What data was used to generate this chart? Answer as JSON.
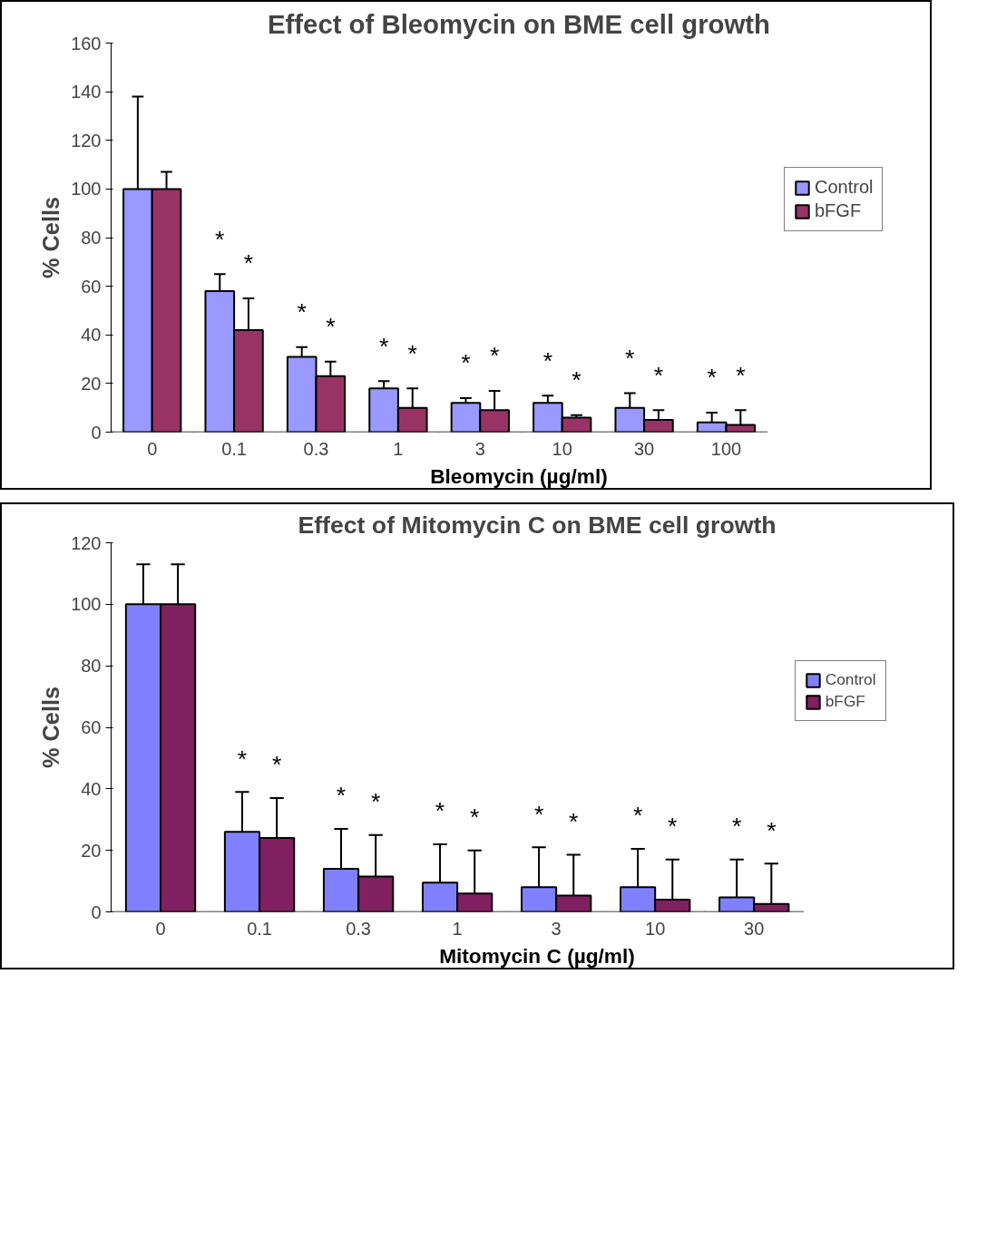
{
  "chart_data": [
    {
      "type": "bar",
      "title": "Effect of Bleomycin on BME cell growth",
      "xlabel": "Bleomycin (µg/ml)",
      "ylabel": "% Cells",
      "categories": [
        "0",
        "0.1",
        "0.3",
        "1",
        "3",
        "10",
        "30",
        "100"
      ],
      "series": [
        {
          "name": "Control",
          "color": "#9999ff",
          "values": [
            100,
            58,
            31,
            18,
            12,
            12,
            10,
            4
          ],
          "errors": [
            [
              100,
              138
            ],
            [
              58,
              65
            ],
            [
              31,
              35
            ],
            [
              18,
              21
            ],
            [
              12,
              14
            ],
            [
              12,
              15
            ],
            [
              10,
              16
            ],
            [
              4,
              8
            ]
          ]
        },
        {
          "name": "bFGF",
          "color": "#993366",
          "values": [
            100,
            42,
            23,
            10,
            9,
            6,
            5,
            3
          ],
          "errors": [
            [
              100,
              107
            ],
            [
              42,
              55
            ],
            [
              23,
              29
            ],
            [
              10,
              18
            ],
            [
              9,
              17
            ],
            [
              6,
              7
            ],
            [
              5,
              9
            ],
            [
              3,
              9
            ]
          ]
        }
      ],
      "ylim": [
        0,
        160
      ],
      "yticks": [
        0,
        20,
        40,
        60,
        80,
        100,
        120,
        140,
        160
      ],
      "grid": false,
      "legend": "right",
      "annotations": [
        "*",
        "*",
        "*",
        "*",
        "*",
        "*",
        "*",
        "*",
        "*",
        "*",
        "*",
        "*",
        "*",
        "*"
      ]
    },
    {
      "type": "bar",
      "title": "Effect of Mitomycin C on BME cell growth",
      "xlabel": "Mitomycin C (µg/ml)",
      "ylabel": "% Cells",
      "categories": [
        "0",
        "0.1",
        "0.3",
        "1",
        "3",
        "10",
        "30"
      ],
      "series": [
        {
          "name": "Control",
          "color": "#8080ff",
          "values": [
            100,
            26,
            14,
            9.5,
            8,
            8,
            4.7
          ],
          "errors": [
            [
              100,
              113
            ],
            [
              26,
              39
            ],
            [
              14,
              27
            ],
            [
              9.5,
              22
            ],
            [
              8,
              21
            ],
            [
              8,
              20.5
            ],
            [
              4.7,
              17
            ]
          ]
        },
        {
          "name": "bFGF",
          "color": "#802060",
          "values": [
            100,
            24,
            11.5,
            6,
            5.3,
            4,
            2.6
          ],
          "errors": [
            [
              100,
              113
            ],
            [
              24,
              37
            ],
            [
              11.5,
              25
            ],
            [
              6,
              20
            ],
            [
              5.3,
              18.6
            ],
            [
              4,
              17
            ],
            [
              2.6,
              15.7
            ]
          ]
        }
      ],
      "ylim": [
        0,
        120
      ],
      "yticks": [
        0,
        20,
        40,
        60,
        80,
        100,
        120
      ],
      "grid": false,
      "legend": "right",
      "annotations": [
        "*",
        "*",
        "*",
        "*",
        "*",
        "*",
        "*",
        "*",
        "*",
        "*",
        "*",
        "*"
      ]
    }
  ]
}
